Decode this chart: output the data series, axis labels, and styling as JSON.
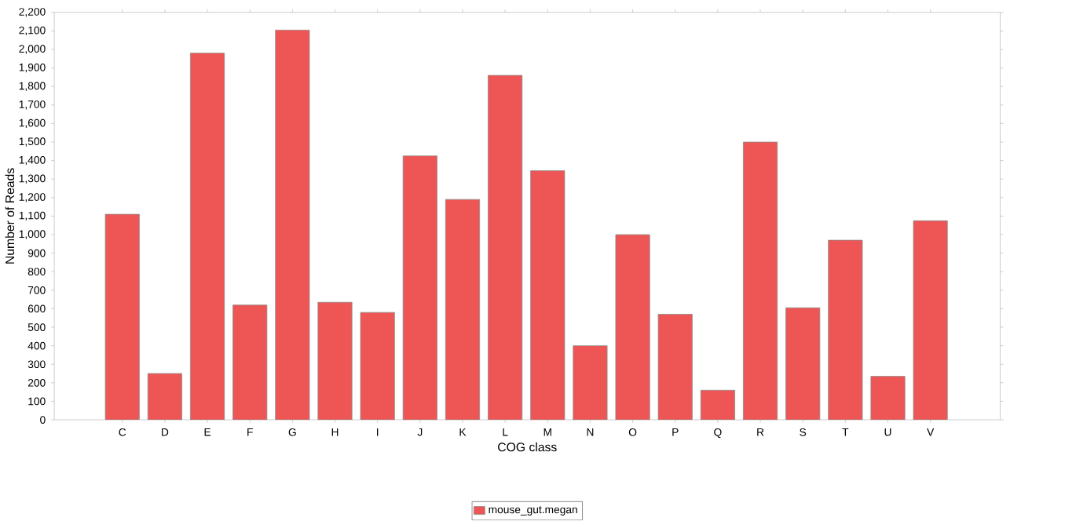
{
  "chart_data": {
    "type": "bar",
    "xlabel": "COG class",
    "ylabel": "Number of Reads",
    "categories": [
      "C",
      "D",
      "E",
      "F",
      "G",
      "H",
      "I",
      "J",
      "K",
      "L",
      "M",
      "N",
      "O",
      "P",
      "Q",
      "R",
      "S",
      "T",
      "U",
      "V"
    ],
    "series": [
      {
        "name": "mouse_gut.megan",
        "color": "#ee5555",
        "values": [
          1110,
          250,
          1980,
          620,
          2105,
          635,
          580,
          1425,
          1190,
          1860,
          1345,
          400,
          1000,
          570,
          160,
          1500,
          605,
          970,
          235,
          1075
        ]
      }
    ],
    "ylim": [
      0,
      2200
    ],
    "yticks": [
      0,
      100,
      200,
      300,
      400,
      500,
      600,
      700,
      800,
      900,
      {
        "value": 1000,
        "label": "1,000"
      },
      {
        "value": 1100,
        "label": "1,100"
      },
      {
        "value": 1200,
        "label": "1,200"
      },
      {
        "value": 1300,
        "label": "1,300"
      },
      {
        "value": 1400,
        "label": "1,400"
      },
      {
        "value": 1500,
        "label": "1,500"
      },
      {
        "value": 1600,
        "label": "1,600"
      },
      {
        "value": 1700,
        "label": "1,700"
      },
      {
        "value": 1800,
        "label": "1,800"
      },
      {
        "value": 1900,
        "label": "1,900"
      },
      {
        "value": 2000,
        "label": "2,000"
      },
      {
        "value": 2100,
        "label": "2,100"
      },
      {
        "value": 2200,
        "label": "2,200"
      }
    ],
    "legend": "bottom"
  }
}
